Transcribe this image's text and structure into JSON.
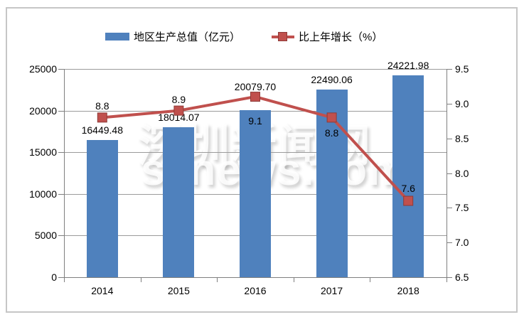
{
  "watermark": {
    "line1": "深圳新闻网",
    "line2": "sznews.com"
  },
  "colors": {
    "bar": "#4f81bd",
    "line": "#c0504d",
    "marker_border": "#8e3b38",
    "grid": "#9b9b9b",
    "axis": "#7f7f7f",
    "border": "#c6c6c6"
  },
  "chart_data": {
    "type": "bar",
    "subtype": "combo-bar-line",
    "title": "",
    "categories": [
      "2014",
      "2015",
      "2016",
      "2017",
      "2018"
    ],
    "series": [
      {
        "name": "地区生产总值（亿元）",
        "type": "bar",
        "axis": "left",
        "color": "#4f81bd",
        "values": [
          16449.48,
          18014.07,
          20079.7,
          22490.06,
          24221.98
        ],
        "labels": [
          "16449.48",
          "18014.07",
          "20079.70",
          "22490.06",
          "24221.98"
        ],
        "label_dy": [
          -14,
          -14,
          -33,
          -14,
          -14
        ]
      },
      {
        "name": "比上年增长（%）",
        "type": "line",
        "axis": "right",
        "color": "#c0504d",
        "marker_border": "#8e3b38",
        "values": [
          8.8,
          8.9,
          9.1,
          8.8,
          7.6
        ],
        "labels": [
          "8.8",
          "8.9",
          "9.1",
          "8.8",
          "7.6"
        ],
        "label_dy": [
          -16,
          -16,
          34,
          22,
          -18
        ]
      }
    ],
    "left_axis": {
      "min": 0,
      "max": 25000,
      "ticks": [
        "25000",
        "20000",
        "15000",
        "10000",
        "5000",
        "0"
      ]
    },
    "right_axis": {
      "min": 6.5,
      "max": 9.5,
      "ticks": [
        "9.5",
        "9.0",
        "8.5",
        "8.0",
        "7.5",
        "7.0",
        "6.5"
      ]
    },
    "grid": true,
    "legend_position": "top"
  }
}
